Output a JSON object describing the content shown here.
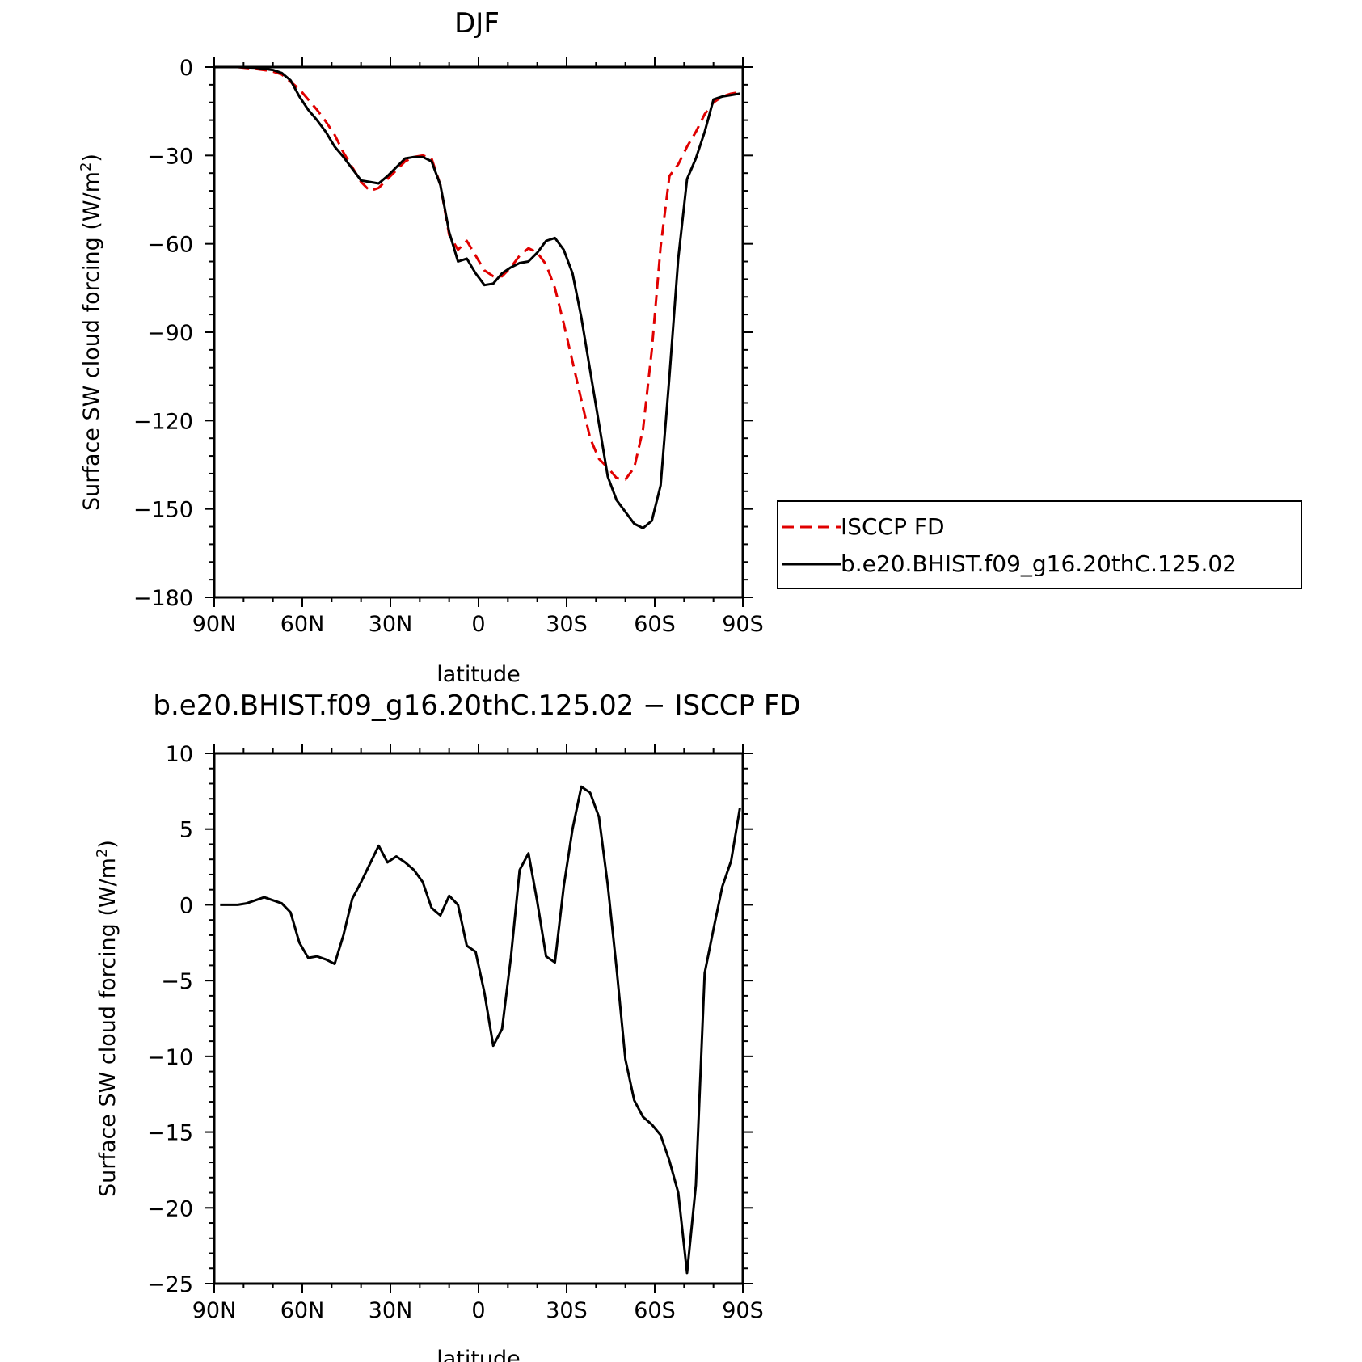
{
  "chart_data": [
    {
      "type": "line",
      "title": "DJF",
      "xlabel": "latitude",
      "ylabel": "Surface SW cloud forcing (W/m2)",
      "ylabel_main": "Surface SW cloud forcing (W/m",
      "ylabel_sup": "2",
      "ylabel_end": ")",
      "xlim": [
        90,
        -90
      ],
      "ylim": [
        -180,
        0
      ],
      "x_ticks": [
        90,
        60,
        30,
        0,
        -30,
        -60,
        -90
      ],
      "x_tick_labels": [
        "90N",
        "60N",
        "30N",
        "0",
        "30S",
        "60S",
        "90S"
      ],
      "y_ticks": [
        0,
        -30,
        -60,
        -90,
        -120,
        -150,
        -180
      ],
      "y_tick_labels": [
        "0",
        "−30",
        "−60",
        "−90",
        "−120",
        "−150",
        "−180"
      ],
      "legend": {
        "placement": "right",
        "items": [
          "ISCCP FD",
          "b.e20.BHIST.f09_g16.20thC.125.02"
        ]
      },
      "series": [
        {
          "name": "ISCCP FD",
          "color": "#e00000",
          "dash": "dashed",
          "x": [
            88,
            85,
            82,
            79,
            76,
            73,
            70,
            67,
            64,
            61,
            58,
            55,
            52,
            49,
            46,
            43,
            40,
            37,
            34,
            31,
            28,
            25,
            22,
            19,
            16,
            13,
            10,
            7,
            4,
            1,
            -2,
            -5,
            -8,
            -11,
            -14,
            -17,
            -20,
            -23,
            -26,
            -29,
            -32,
            -35,
            -38,
            -41,
            -44,
            -47,
            -50,
            -53,
            -56,
            -59,
            -62,
            -65,
            -68,
            -71,
            -74,
            -77,
            -80,
            -83,
            -86,
            -89
          ],
          "y": [
            0,
            0,
            0,
            -0.3,
            -0.6,
            -1,
            -1.5,
            -2.5,
            -5,
            -7.5,
            -11,
            -14.5,
            -18.5,
            -23,
            -29,
            -34,
            -39,
            -42,
            -41,
            -38,
            -35,
            -32,
            -30.5,
            -30,
            -31,
            -40,
            -57,
            -62,
            -59,
            -64,
            -69,
            -71,
            -71,
            -68,
            -64,
            -61.5,
            -63,
            -67,
            -75,
            -87,
            -100,
            -113,
            -126,
            -133,
            -136,
            -139.5,
            -140,
            -136,
            -123,
            -96,
            -61,
            -37,
            -33,
            -27,
            -22,
            -16,
            -12,
            -10,
            -9,
            -8.5
          ]
        },
        {
          "name": "b.e20.BHIST.f09_g16.20thC.125.02",
          "color": "#000000",
          "dash": "solid",
          "x": [
            88,
            85,
            82,
            79,
            76,
            73,
            70,
            67,
            64,
            61,
            58,
            55,
            52,
            49,
            46,
            43,
            40,
            37,
            34,
            31,
            28,
            25,
            22,
            19,
            16,
            13,
            10,
            7,
            4,
            1,
            -2,
            -5,
            -8,
            -11,
            -14,
            -17,
            -20,
            -23,
            -26,
            -29,
            -32,
            -35,
            -38,
            -41,
            -44,
            -47,
            -50,
            -53,
            -56,
            -59,
            -62,
            -65,
            -68,
            -71,
            -74,
            -77,
            -80,
            -83,
            -86,
            -89
          ],
          "y": [
            0,
            0,
            0,
            -0.1,
            -0.2,
            -0.6,
            -1,
            -2,
            -4.5,
            -10,
            -14.5,
            -18,
            -22,
            -27,
            -30.5,
            -34.5,
            -38.5,
            -39,
            -39.5,
            -37,
            -34,
            -31,
            -30.5,
            -30.5,
            -32,
            -40,
            -56,
            -66,
            -65,
            -70,
            -74,
            -73.5,
            -70,
            -68,
            -66.5,
            -66,
            -63,
            -59,
            -58,
            -62,
            -70,
            -85,
            -103,
            -121,
            -139,
            -147,
            -151,
            -155,
            -156.5,
            -154,
            -142,
            -105,
            -65,
            -38,
            -31,
            -22,
            -11,
            -10,
            -9.5,
            -9
          ]
        }
      ]
    },
    {
      "type": "line",
      "title": "b.e20.BHIST.f09_g16.20thC.125.02 − ISCCP FD",
      "xlabel": "latitude",
      "ylabel": "Surface SW cloud forcing (W/m2)",
      "ylabel_main": "Surface SW cloud forcing (W/m",
      "ylabel_sup": "2",
      "ylabel_end": ")",
      "xlim": [
        90,
        -90
      ],
      "ylim": [
        -25,
        10
      ],
      "x_ticks": [
        90,
        60,
        30,
        0,
        -30,
        -60,
        -90
      ],
      "x_tick_labels": [
        "90N",
        "60N",
        "30N",
        "0",
        "30S",
        "60S",
        "90S"
      ],
      "y_ticks": [
        10,
        5,
        0,
        -5,
        -10,
        -15,
        -20,
        -25
      ],
      "y_tick_labels": [
        "10",
        "5",
        "0",
        "−5",
        "−10",
        "−15",
        "−20",
        "−25"
      ],
      "series": [
        {
          "color": "#000000",
          "dash": "solid",
          "x": [
            88,
            85,
            82,
            79,
            76,
            73,
            70,
            67,
            64,
            61,
            58,
            55,
            52,
            49,
            46,
            43,
            40,
            37,
            34,
            31,
            28,
            25,
            22,
            19,
            16,
            13,
            10,
            7,
            4,
            1,
            -2,
            -5,
            -8,
            -11,
            -14,
            -17,
            -20,
            -23,
            -26,
            -29,
            -32,
            -35,
            -38,
            -41,
            -44,
            -47,
            -50,
            -53,
            -56,
            -59,
            -62,
            -65,
            -68,
            -71,
            -74,
            -77,
            -80,
            -83,
            -86,
            -89
          ],
          "y": [
            0,
            0,
            0,
            0.1,
            0.3,
            0.5,
            0.3,
            0.1,
            -0.5,
            -2.5,
            -3.5,
            -3.4,
            -3.6,
            -3.9,
            -2,
            0.4,
            1.5,
            2.7,
            3.9,
            2.8,
            3.2,
            2.8,
            2.3,
            1.5,
            -0.2,
            -0.7,
            0.6,
            0,
            -2.7,
            -3.1,
            -5.8,
            -9.3,
            -8.2,
            -3.5,
            2.3,
            3.4,
            0.2,
            -3.4,
            -3.8,
            1.2,
            5,
            7.8,
            7.4,
            5.8,
            1.3,
            -4.2,
            -10.2,
            -12.9,
            -14,
            -14.5,
            -15.2,
            -16.9,
            -19,
            -24.3,
            -18.5,
            -4.5,
            -1.6,
            1.2,
            2.9,
            6.4
          ]
        }
      ]
    }
  ]
}
